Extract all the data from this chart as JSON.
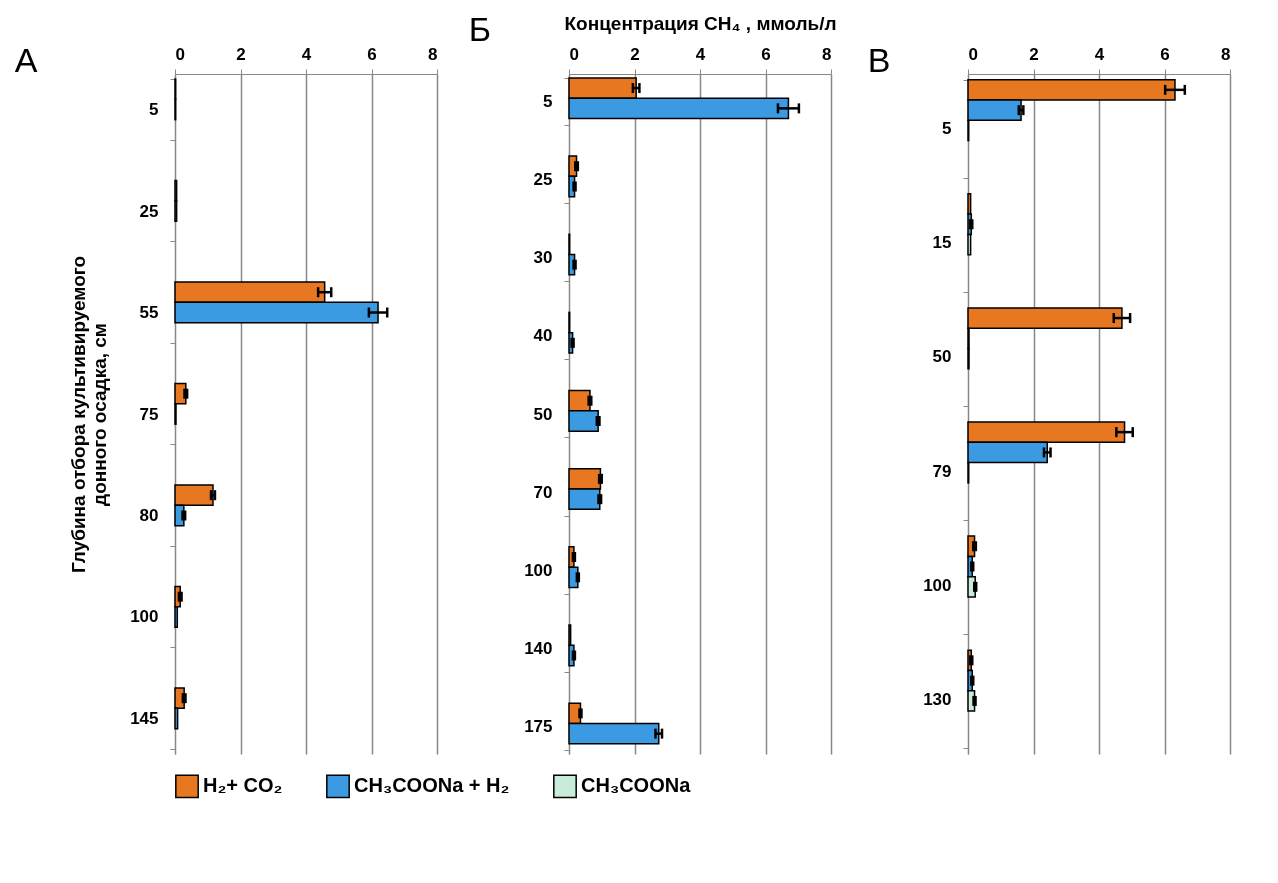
{
  "chart_data": [
    {
      "type": "bar",
      "orientation": "horizontal",
      "ylabel": "Глубина отбора культивируемого донного осадка, см",
      "annotations": [
        "А"
      ],
      "categories": [
        "5",
        "25",
        "55",
        "75",
        "80",
        "100",
        "145"
      ],
      "xlim": [
        0,
        8
      ],
      "xticks": [
        0,
        2,
        4,
        6,
        8
      ],
      "grid": "x",
      "legend": "bottom",
      "series": [
        {
          "name": "H₂+ CO₂",
          "color": "#e87722",
          "values": [
            0.02,
            0.05,
            4.57,
            0.33,
            1.16,
            0.16,
            0.28
          ],
          "errors": [
            null,
            null,
            0.2,
            0.04,
            0.06,
            0.04,
            0.04
          ]
        },
        {
          "name": "CH₃COONa + H₂",
          "color": "#3b9ae1",
          "values": [
            0.02,
            0.05,
            6.2,
            0.03,
            0.27,
            0.07,
            0.08
          ],
          "errors": [
            null,
            null,
            0.28,
            null,
            0.04,
            null,
            null
          ]
        }
      ]
    },
    {
      "type": "bar",
      "orientation": "horizontal",
      "xlabel": "Концентрация CH₄ , ммоль/л",
      "annotations": [
        "Б"
      ],
      "categories": [
        "5",
        "25",
        "30",
        "40",
        "50",
        "70",
        "100",
        "140",
        "175"
      ],
      "xlim": [
        0,
        8
      ],
      "xticks": [
        0,
        2,
        4,
        6,
        8
      ],
      "grid": "x",
      "legend": "bottom",
      "series": [
        {
          "name": "H₂+ CO₂",
          "color": "#e87722",
          "values": [
            2.05,
            0.23,
            0.02,
            0.02,
            0.64,
            0.96,
            0.15,
            0.05,
            0.35
          ],
          "errors": [
            0.1,
            0.04,
            null,
            null,
            0.04,
            0.04,
            0.03,
            null,
            0.03
          ]
        },
        {
          "name": "CH₃COONa + H₂",
          "color": "#3b9ae1",
          "values": [
            6.7,
            0.17,
            0.17,
            0.11,
            0.89,
            0.94,
            0.27,
            0.15,
            2.74
          ],
          "errors": [
            0.32,
            0.03,
            0.03,
            0.03,
            0.04,
            0.04,
            0.03,
            0.03,
            0.1
          ]
        }
      ]
    },
    {
      "type": "bar",
      "orientation": "horizontal",
      "annotations": [
        "В"
      ],
      "categories": [
        "5",
        "15",
        "50",
        "79",
        "100",
        "130"
      ],
      "xlim": [
        0,
        8
      ],
      "xticks": [
        0,
        2,
        4,
        6,
        8
      ],
      "grid": "x",
      "legend": "bottom",
      "series": [
        {
          "name": "H₂+ CO₂",
          "color": "#e87722",
          "values": [
            6.32,
            0.08,
            4.7,
            4.78,
            0.2,
            0.1
          ],
          "errors": [
            0.3,
            null,
            0.25,
            0.25,
            0.04,
            0.03
          ]
        },
        {
          "name": "CH₃COONa + H₂",
          "color": "#3b9ae1",
          "values": [
            1.62,
            0.1,
            0.03,
            2.42,
            0.13,
            0.13
          ],
          "errors": [
            0.07,
            0.03,
            null,
            0.1,
            0.03,
            0.03
          ]
        },
        {
          "name": "CH₃COONa",
          "color": "#c8ecd9",
          "values": [
            0.02,
            0.08,
            0.03,
            0.02,
            0.22,
            0.2
          ],
          "errors": [
            null,
            null,
            null,
            null,
            0.03,
            0.03
          ]
        }
      ]
    }
  ]
}
